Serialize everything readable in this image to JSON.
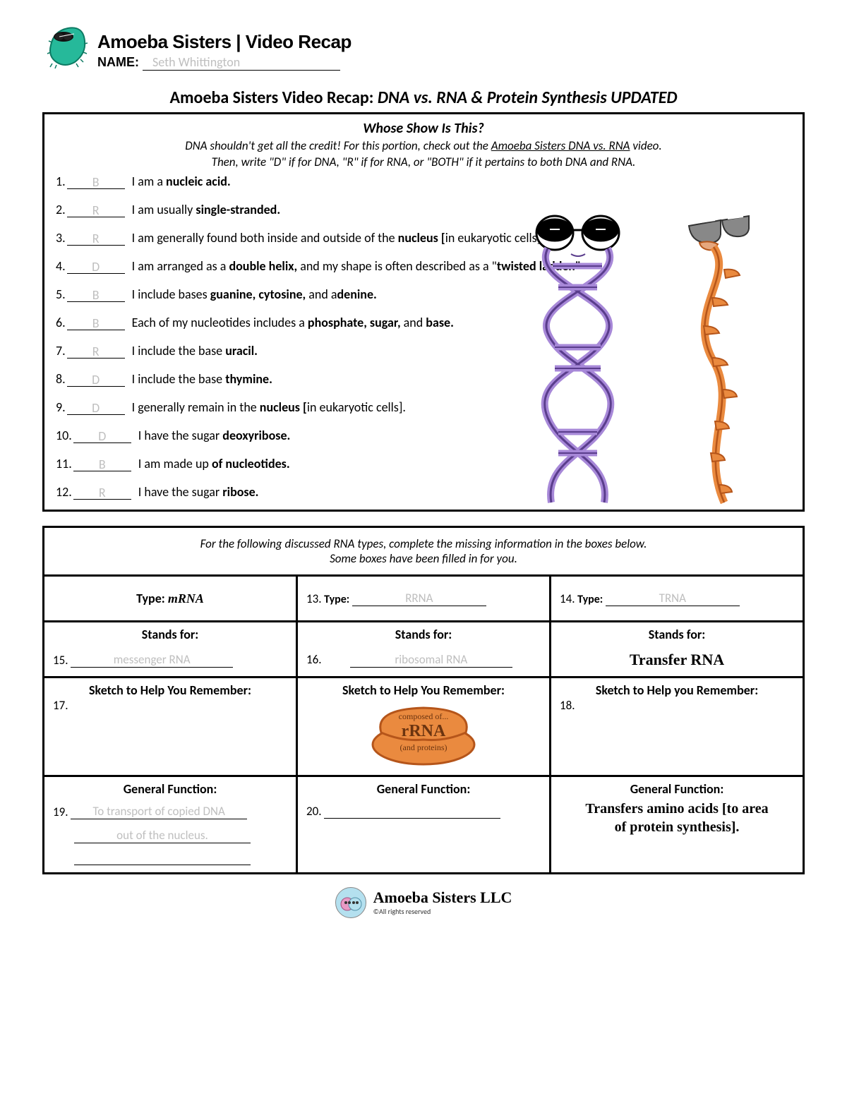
{
  "header": {
    "brand": "Amoeba Sisters | Video Recap",
    "name_label": "NAME:",
    "name_value": "Seth Whittington"
  },
  "page_title_prefix": "Amoeba Sisters Video Recap: ",
  "page_title_topic": "DNA vs. RNA & Protein Synthesis UPDATED",
  "section1": {
    "title": "Whose Show Is This?",
    "instr_line1_a": "DNA shouldn't get all the credit! For this portion, check out the ",
    "instr_line1_u": "Amoeba Sisters DNA vs. RNA",
    "instr_line1_b": " video.",
    "instr_line2": "Then, write \"D\" if for DNA, \"R\" if for RNA, or \"BOTH\" if it pertains to both DNA and RNA.",
    "items": [
      {
        "n": "1.",
        "ans": "B",
        "pre": "I am a ",
        "bold": "nucleic acid.",
        "post": ""
      },
      {
        "n": "2.",
        "ans": "R",
        "pre": "I am usually ",
        "bold": "single-stranded.",
        "post": ""
      },
      {
        "n": "3.",
        "ans": "R",
        "pre": "I am generally found both inside and outside of the ",
        "bold": "nucleus [",
        "post": "in eukaryotic cells]."
      },
      {
        "n": "4.",
        "ans": "D",
        "pre": "I am arranged as a ",
        "bold": "double helix,",
        "post": " and my shape is often described as a \"",
        "bold2": "twisted ladder.\"",
        "post2": ""
      },
      {
        "n": "5.",
        "ans": "B",
        "pre": "I include bases ",
        "bold": "guanine, cytosine,",
        "post": " and a",
        "bold2": "denine.",
        "post2": ""
      },
      {
        "n": "6.",
        "ans": "B",
        "pre": "Each of my nucleotides includes a ",
        "bold": "phosphate, sugar,",
        "post": " and ",
        "bold2": "base.",
        "post2": ""
      },
      {
        "n": "7.",
        "ans": "R",
        "pre": "I include the base ",
        "bold": "uracil.",
        "post": ""
      },
      {
        "n": "8.",
        "ans": "D",
        "pre": "I include the base ",
        "bold": "thymine.",
        "post": ""
      },
      {
        "n": "9.",
        "ans": "D",
        "pre": "I generally remain in the ",
        "bold": "nucleus [",
        "post": "in eukaryotic cells]."
      },
      {
        "n": "10.",
        "ans": "D",
        "pre": "I have the sugar ",
        "bold": "deoxyribose.",
        "post": ""
      },
      {
        "n": "11.",
        "ans": "B",
        "pre": "I am made up ",
        "bold": "of nucleotides.",
        "post": ""
      },
      {
        "n": "12.",
        "ans": "R",
        "pre": "I have the sugar ",
        "bold": "ribose.",
        "post": ""
      }
    ]
  },
  "table": {
    "intro1": "For the following discussed RNA types, complete the missing information in the boxes below.",
    "intro2": "Some boxes have been filled in for you.",
    "type_label": "Type:",
    "col1_type": "mRNA",
    "q13_num": "13.",
    "q13_ans": "RRNA",
    "q14_num": "14.",
    "q14_ans": "TRNA",
    "stands_for": "Stands for:",
    "q15_num": "15.",
    "q15_ans": "messenger RNA",
    "q16_num": "16.",
    "q16_ans": "ribosomal RNA",
    "col3_stands": "Transfer RNA",
    "sketch_label": "Sketch to Help You Remember:",
    "sketch_label_alt": "Sketch to Help you Remember:",
    "q17_num": "17.",
    "q18_num": "18.",
    "rrna_text1": "composed of...",
    "rrna_text2": "rRNA",
    "rrna_text3": "(and proteins)",
    "func_label": "General Function:",
    "q19_num": "19.",
    "q19_ans1": "To transport of copied DNA",
    "q19_ans2": "out of the nucleus.",
    "q20_num": "20.",
    "col3_func1": "Transfers amino acids [to area",
    "col3_func2": "of protein synthesis]."
  },
  "footer": {
    "brand": "Amoeba Sisters LLC",
    "copy": "©All rights reserved"
  },
  "colors": {
    "dna_body": "#a788d8",
    "dna_outline": "#5a3d8c",
    "rna_body": "#ea8a3f",
    "rna_outline": "#b5551a",
    "amoeba": "#26b99a",
    "ribosome": "#ea8a3f"
  }
}
